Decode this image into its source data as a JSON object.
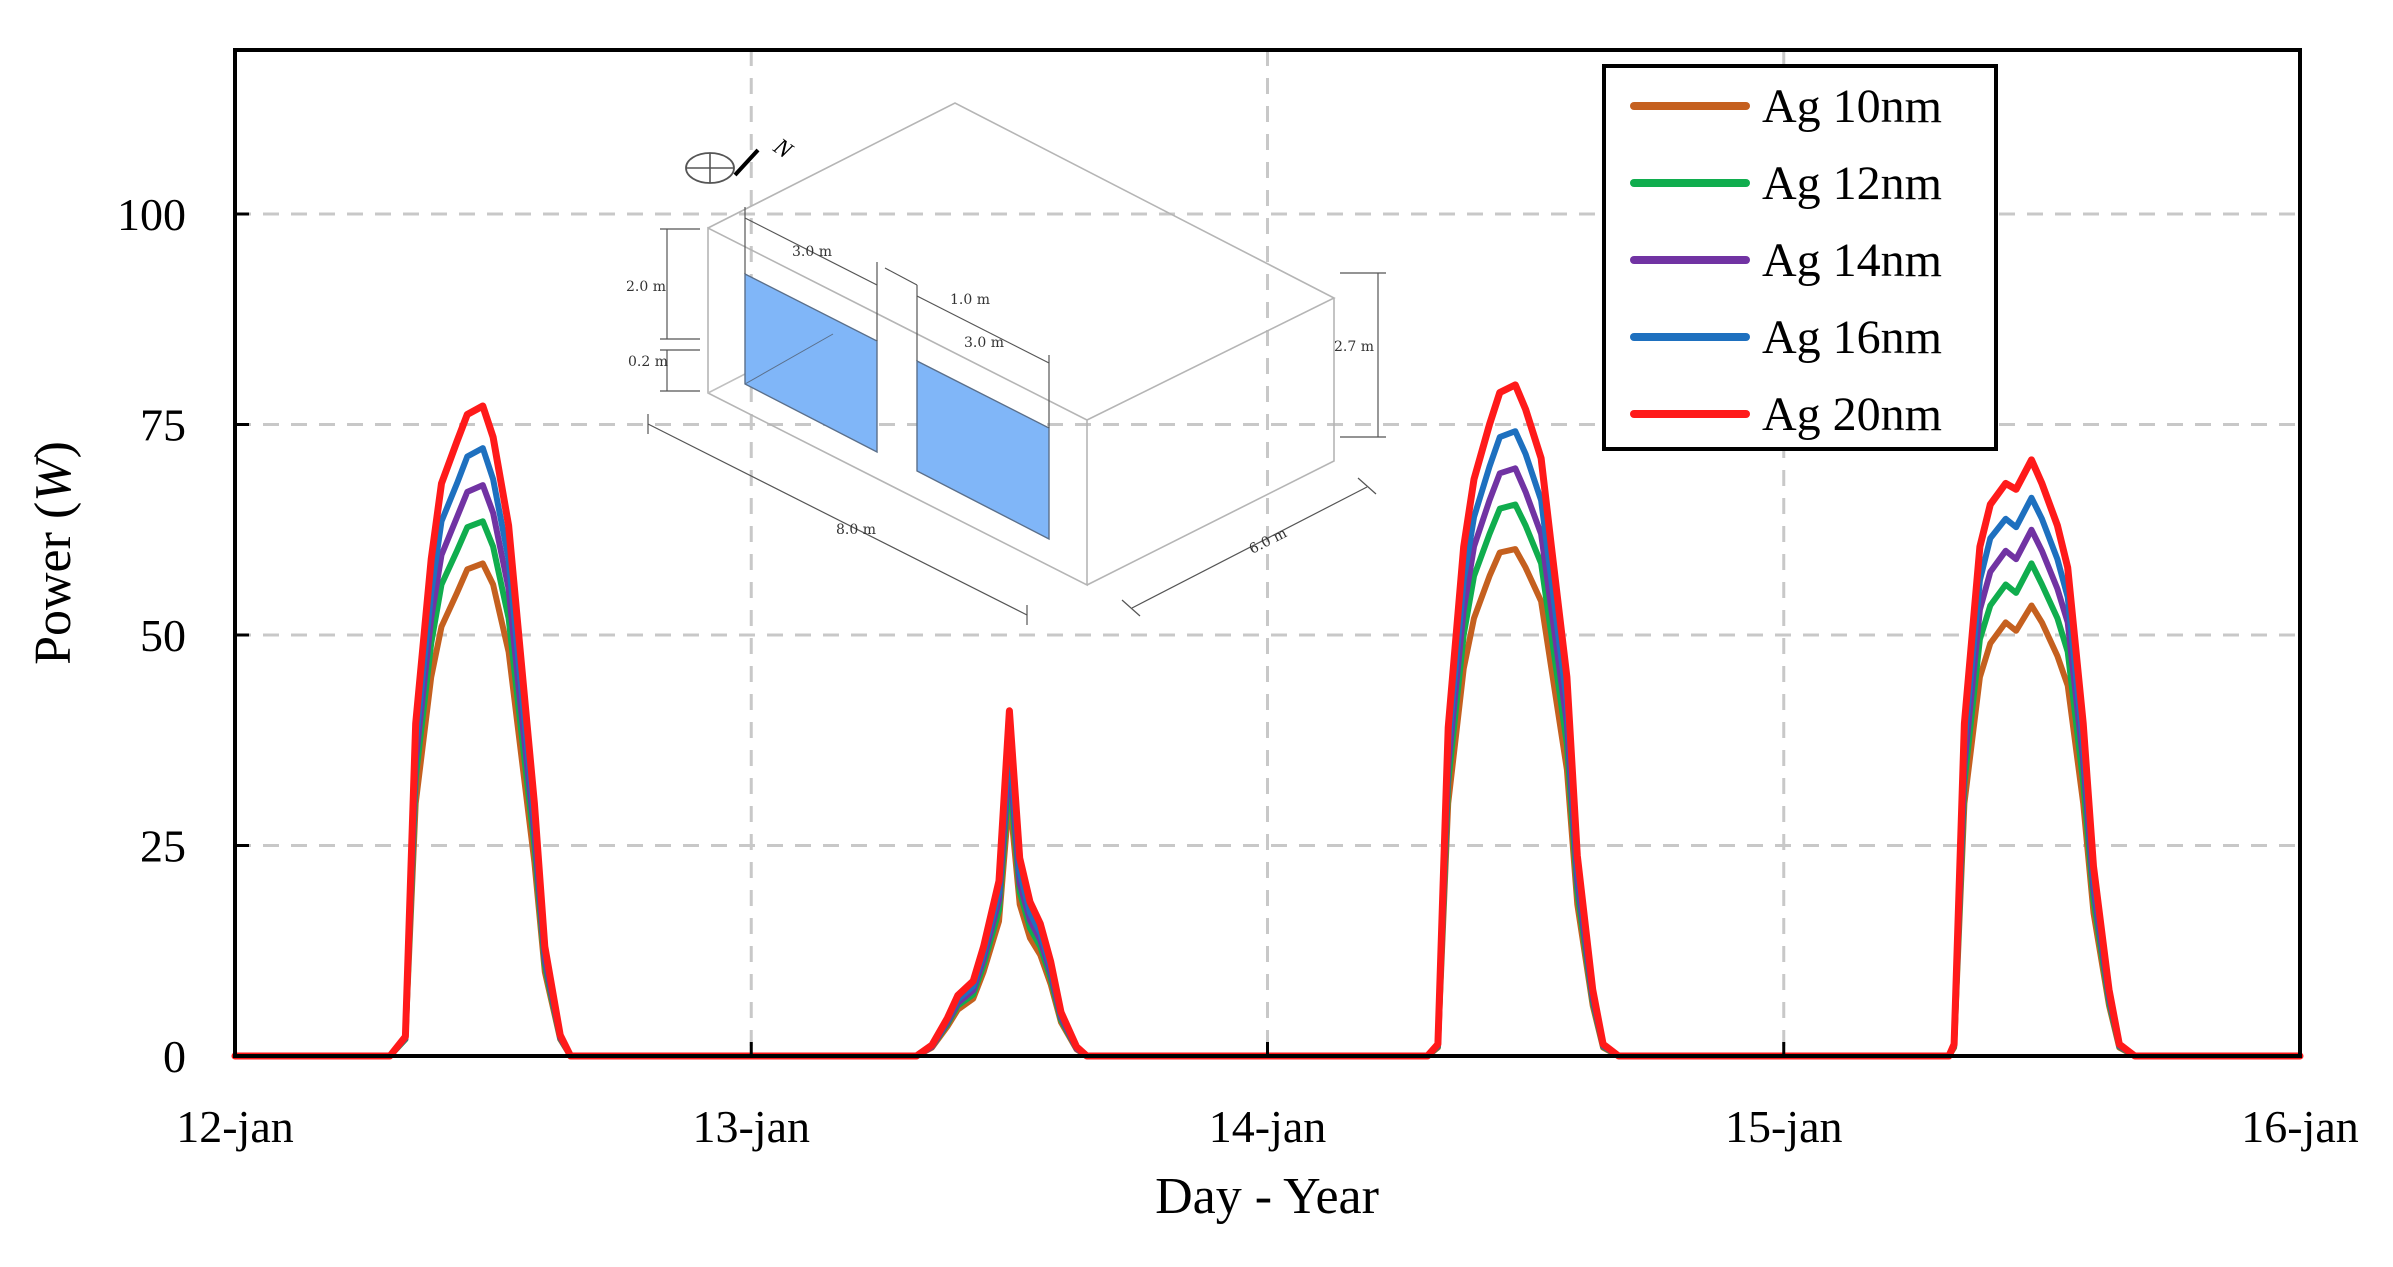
{
  "chart_data": {
    "type": "line",
    "title": "",
    "xlabel": "Day - Year",
    "ylabel_text": "Power (",
    "ylabel_unit": "W",
    "ylabel_close": ")",
    "xlim": [
      0,
      4
    ],
    "ylim": [
      0,
      120
    ],
    "yticks": [
      0,
      25,
      50,
      75,
      100
    ],
    "ytick_labels": [
      "0",
      "25",
      "50",
      "75",
      "100"
    ],
    "xticks": [
      0,
      1,
      2,
      3,
      4
    ],
    "xtick_labels": [
      "12-jan",
      "13-jan",
      "14-jan",
      "15-jan",
      "16-jan"
    ],
    "grid": true,
    "legend_position": "top-right",
    "x": [
      0.0,
      0.3,
      0.33,
      0.35,
      0.38,
      0.4,
      0.43,
      0.45,
      0.48,
      0.5,
      0.53,
      0.55,
      0.58,
      0.6,
      0.63,
      0.65,
      0.68,
      0.7,
      0.73,
      0.78,
      1.0,
      1.32,
      1.35,
      1.38,
      1.4,
      1.43,
      1.45,
      1.48,
      1.5,
      1.52,
      1.54,
      1.56,
      1.58,
      1.6,
      1.63,
      1.65,
      1.68,
      1.7,
      1.73,
      1.8,
      2.0,
      2.31,
      2.33,
      2.35,
      2.38,
      2.4,
      2.43,
      2.45,
      2.48,
      2.5,
      2.53,
      2.55,
      2.58,
      2.6,
      2.63,
      2.65,
      2.68,
      2.7,
      2.73,
      2.8,
      3.0,
      3.32,
      3.33,
      3.35,
      3.38,
      3.4,
      3.43,
      3.45,
      3.48,
      3.5,
      3.53,
      3.55,
      3.58,
      3.6,
      3.63,
      3.65,
      3.68,
      3.7,
      3.73,
      3.8,
      4.0
    ],
    "series": [
      {
        "name": "Ag 10nm",
        "color": "#c5601f",
        "values": [
          0,
          0,
          2,
          30,
          45,
          51,
          55,
          57.8,
          58.5,
          56,
          48,
          38,
          23,
          10,
          2,
          0,
          0,
          0,
          0,
          0,
          0,
          0,
          1,
          3.5,
          5.5,
          6.8,
          10,
          16,
          31,
          18,
          14,
          12,
          8.5,
          4,
          0.8,
          0,
          0,
          0,
          0,
          0,
          0,
          0,
          1,
          30,
          46,
          52,
          57,
          59.8,
          60.2,
          58,
          54,
          46,
          34,
          18,
          6,
          1,
          0,
          0,
          0,
          0,
          0,
          0,
          1,
          30,
          45,
          49,
          51.5,
          50.5,
          53.5,
          51.5,
          47.5,
          44,
          30,
          17,
          6,
          1,
          0,
          0,
          0,
          0,
          0
        ]
      },
      {
        "name": "Ag 12nm",
        "color": "#10ad4e",
        "values": [
          0,
          0,
          2,
          33,
          49,
          56,
          60,
          62.8,
          63.5,
          60.5,
          52,
          41,
          25,
          10.8,
          2.1,
          0,
          0,
          0,
          0,
          0,
          0,
          0,
          1.1,
          3.8,
          6,
          7.3,
          10.8,
          17.3,
          33.5,
          19.5,
          15.2,
          13,
          9.2,
          4.3,
          0.9,
          0,
          0,
          0,
          0,
          0,
          0,
          0,
          1.1,
          32.5,
          50,
          57,
          62,
          65,
          65.5,
          63,
          58.5,
          50,
          37,
          19.5,
          6.5,
          1.1,
          0,
          0,
          0,
          0,
          0,
          0,
          1.1,
          32.5,
          49.5,
          53.5,
          56,
          55,
          58.5,
          56,
          52,
          48,
          32.5,
          18.5,
          6.5,
          1.1,
          0,
          0,
          0,
          0,
          0
        ]
      },
      {
        "name": "Ag 14nm",
        "color": "#7133a3",
        "values": [
          0,
          0,
          2.1,
          35,
          52,
          59.5,
          64,
          67,
          67.8,
          64.5,
          55.5,
          43.5,
          26.5,
          11.5,
          2.2,
          0,
          0,
          0,
          0,
          0,
          0,
          0,
          1.1,
          4,
          6.3,
          7.8,
          11.5,
          18.5,
          35.5,
          20.5,
          16.1,
          13.8,
          9.8,
          4.6,
          0.9,
          0,
          0,
          0,
          0,
          0,
          0,
          0,
          1.2,
          34.5,
          53,
          60.5,
          66,
          69.2,
          69.8,
          67,
          62,
          53,
          39.5,
          20.8,
          6.9,
          1.2,
          0,
          0,
          0,
          0,
          0,
          0,
          1.2,
          34.5,
          53,
          57.5,
          60,
          59,
          62.5,
          60,
          55.5,
          51.5,
          35,
          19.8,
          7,
          1.2,
          0,
          0,
          0,
          0,
          0
        ]
      },
      {
        "name": "Ag 16nm",
        "color": "#1e70bf",
        "values": [
          0,
          0,
          2.2,
          37,
          55,
          63.5,
          68,
          71.2,
          72.2,
          68.5,
          59,
          46.5,
          28,
          12.2,
          2.4,
          0,
          0,
          0,
          0,
          0,
          0,
          0,
          1.2,
          4.2,
          6.7,
          8.3,
          12.2,
          19.5,
          37.5,
          21.8,
          17,
          14.6,
          10.4,
          4.9,
          1,
          0,
          0,
          0,
          0,
          0,
          0,
          0,
          1.3,
          36.5,
          56.5,
          64,
          70,
          73.5,
          74.2,
          71.5,
          66,
          56.5,
          42,
          22.2,
          7.4,
          1.3,
          0,
          0,
          0,
          0,
          0,
          0,
          1.3,
          37,
          56.5,
          61.5,
          63.8,
          62.8,
          66.3,
          63.8,
          59,
          54.5,
          37,
          21,
          7.4,
          1.3,
          0,
          0,
          0,
          0,
          0
        ]
      },
      {
        "name": "Ag 20nm",
        "color": "#ff1a1a",
        "values": [
          0,
          0,
          2.3,
          39.5,
          59,
          68,
          73,
          76.2,
          77.2,
          73.5,
          63,
          49.8,
          30,
          13,
          2.5,
          0,
          0,
          0,
          0,
          0,
          0,
          0,
          1.3,
          4.5,
          7.2,
          8.9,
          13,
          20.8,
          41,
          23.5,
          18.3,
          15.7,
          11.2,
          5.2,
          1.1,
          0,
          0,
          0,
          0,
          0,
          0,
          0,
          1.4,
          39,
          60.5,
          68.5,
          75,
          78.8,
          79.7,
          76.8,
          71,
          60.5,
          45,
          23.8,
          7.9,
          1.4,
          0,
          0,
          0,
          0,
          0,
          0,
          1.4,
          39.5,
          60.5,
          65.5,
          68,
          67.3,
          70.8,
          68,
          63,
          58,
          39.5,
          22.5,
          7.9,
          1.4,
          0,
          0,
          0,
          0,
          0
        ]
      }
    ]
  },
  "inset": {
    "compass_label": "N",
    "window_height": "2.0 m",
    "sill_height": "0.2 m",
    "window1_width": "3.0 m",
    "window_gap": "1.0 m",
    "window2_width": "3.0 m",
    "room_height": "2.7 m",
    "room_length": "8.0 m",
    "room_depth": "6.0 m"
  }
}
